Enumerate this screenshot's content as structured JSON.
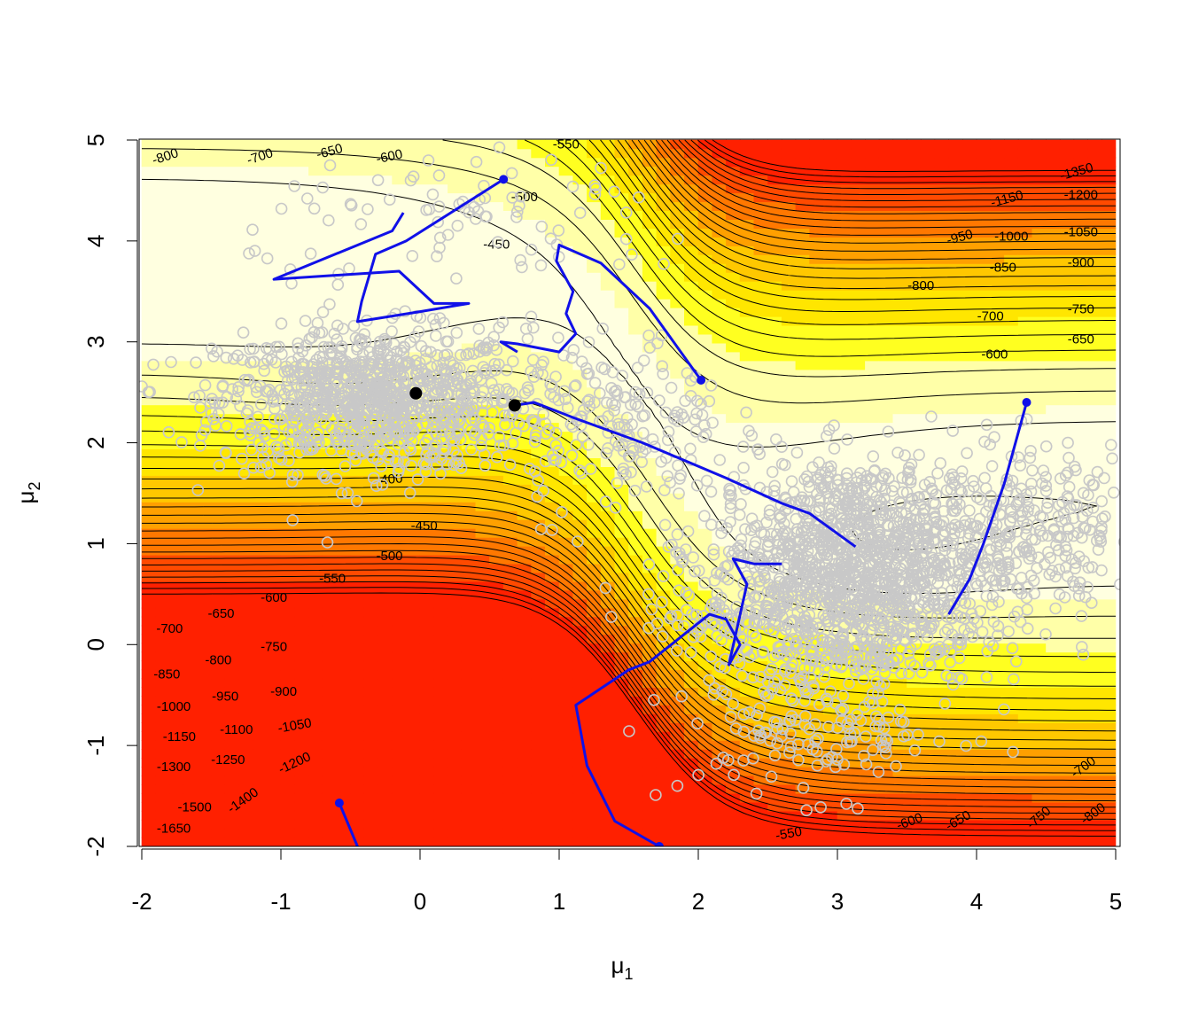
{
  "chart_data": {
    "type": "contour",
    "title": "",
    "xlabel": {
      "base": "μ",
      "sub": "1"
    },
    "ylabel": {
      "base": "μ",
      "sub": "2"
    },
    "xlim": [
      -2,
      5
    ],
    "ylim": [
      -2,
      5
    ],
    "x_ticks": [
      "-2",
      "-1",
      "0",
      "1",
      "2",
      "3",
      "4",
      "5"
    ],
    "y_ticks": [
      "-2",
      "-1",
      "0",
      "1",
      "2",
      "3",
      "4",
      "5"
    ],
    "colors": {
      "palette": [
        "#ffffe0",
        "#ffffa8",
        "#ffff20",
        "#ffe600",
        "#ffc800",
        "#ffa000",
        "#ff7800",
        "#ff4a00",
        "#ff2000"
      ],
      "contour_line": "#000000",
      "samples": "#c8c8c8",
      "paths": "#1010e8",
      "modes": "#000000"
    },
    "contour_levels": [
      -1650,
      -1600,
      -1550,
      -1500,
      -1450,
      -1400,
      -1350,
      -1300,
      -1250,
      -1200,
      -1150,
      -1100,
      -1050,
      -1000,
      -950,
      -900,
      -850,
      -800,
      -750,
      -700,
      -650,
      -600,
      -550,
      -500,
      -450,
      -400
    ],
    "contour_labels": [
      {
        "text": "-800",
        "x": -1.83,
        "y": 4.83,
        "rot": -18
      },
      {
        "text": "-700",
        "x": -1.15,
        "y": 4.83,
        "rot": -18
      },
      {
        "text": "-650",
        "x": -0.65,
        "y": 4.88,
        "rot": -15
      },
      {
        "text": "-600",
        "x": -0.22,
        "y": 4.83,
        "rot": -12
      },
      {
        "text": "-550",
        "x": 1.05,
        "y": 4.95,
        "rot": 0
      },
      {
        "text": "-500",
        "x": 0.75,
        "y": 4.43,
        "rot": 0
      },
      {
        "text": "-450",
        "x": 0.55,
        "y": 3.96,
        "rot": 0
      },
      {
        "text": "-400",
        "x": -0.22,
        "y": 1.63,
        "rot": -5
      },
      {
        "text": "-450",
        "x": 0.03,
        "y": 1.17,
        "rot": 0
      },
      {
        "text": "-500",
        "x": -0.22,
        "y": 0.87,
        "rot": 0
      },
      {
        "text": "-550",
        "x": -0.63,
        "y": 0.65,
        "rot": 0
      },
      {
        "text": "-600",
        "x": -1.05,
        "y": 0.46,
        "rot": 0
      },
      {
        "text": "-650",
        "x": -1.43,
        "y": 0.3,
        "rot": 0
      },
      {
        "text": "-700",
        "x": -1.8,
        "y": 0.15,
        "rot": 0
      },
      {
        "text": "-750",
        "x": -1.05,
        "y": -0.03,
        "rot": 0
      },
      {
        "text": "-800",
        "x": -1.45,
        "y": -0.16,
        "rot": 0
      },
      {
        "text": "-850",
        "x": -1.82,
        "y": -0.3,
        "rot": 0
      },
      {
        "text": "-900",
        "x": -0.98,
        "y": -0.47,
        "rot": 0
      },
      {
        "text": "-950",
        "x": -1.4,
        "y": -0.52,
        "rot": 0
      },
      {
        "text": "-1000",
        "x": -1.77,
        "y": -0.62,
        "rot": 0
      },
      {
        "text": "-1050",
        "x": -0.9,
        "y": -0.81,
        "rot": -10
      },
      {
        "text": "-1100",
        "x": -1.32,
        "y": -0.85,
        "rot": 0
      },
      {
        "text": "-1150",
        "x": -1.73,
        "y": -0.92,
        "rot": 0
      },
      {
        "text": "-1200",
        "x": -0.9,
        "y": -1.18,
        "rot": -25
      },
      {
        "text": "-1250",
        "x": -1.38,
        "y": -1.15,
        "rot": 0
      },
      {
        "text": "-1300",
        "x": -1.77,
        "y": -1.22,
        "rot": 0
      },
      {
        "text": "-1400",
        "x": -1.27,
        "y": -1.55,
        "rot": -35
      },
      {
        "text": "-1500",
        "x": -1.62,
        "y": -1.62,
        "rot": 0
      },
      {
        "text": "-1650",
        "x": -1.77,
        "y": -1.83,
        "rot": 0
      },
      {
        "text": "-1350",
        "x": 4.72,
        "y": 4.68,
        "rot": -15
      },
      {
        "text": "-1150",
        "x": 4.22,
        "y": 4.41,
        "rot": -15
      },
      {
        "text": "-1200",
        "x": 4.75,
        "y": 4.45,
        "rot": 0
      },
      {
        "text": "-950",
        "x": 3.88,
        "y": 4.03,
        "rot": -15
      },
      {
        "text": "-1000",
        "x": 4.25,
        "y": 4.04,
        "rot": 0
      },
      {
        "text": "-1050",
        "x": 4.75,
        "y": 4.08,
        "rot": 0
      },
      {
        "text": "-800",
        "x": 3.6,
        "y": 3.55,
        "rot": 0
      },
      {
        "text": "-850",
        "x": 4.19,
        "y": 3.73,
        "rot": 0
      },
      {
        "text": "-900",
        "x": 4.75,
        "y": 3.78,
        "rot": 0
      },
      {
        "text": "-750",
        "x": 4.75,
        "y": 3.32,
        "rot": 0
      },
      {
        "text": "-700",
        "x": 4.1,
        "y": 3.25,
        "rot": 0
      },
      {
        "text": "-650",
        "x": 4.75,
        "y": 3.02,
        "rot": 0
      },
      {
        "text": "-600",
        "x": 4.13,
        "y": 2.87,
        "rot": 0
      },
      {
        "text": "-550",
        "x": 2.65,
        "y": -1.88,
        "rot": -10
      },
      {
        "text": "-600",
        "x": 3.52,
        "y": -1.76,
        "rot": -20
      },
      {
        "text": "-650",
        "x": 3.87,
        "y": -1.75,
        "rot": -30
      },
      {
        "text": "-700",
        "x": 4.77,
        "y": -1.22,
        "rot": -35
      },
      {
        "text": "-750",
        "x": 4.45,
        "y": -1.72,
        "rot": -40
      },
      {
        "text": "-800",
        "x": 4.84,
        "y": -1.68,
        "rot": -35
      }
    ],
    "modes": [
      {
        "x": -0.03,
        "y": 2.49
      },
      {
        "x": 0.68,
        "y": 2.37
      }
    ],
    "paths": [
      {
        "name": "path1",
        "points": [
          [
            0.6,
            4.61
          ],
          [
            -0.1,
            4.0
          ],
          [
            -0.32,
            3.87
          ],
          [
            -0.42,
            3.4
          ],
          [
            -0.45,
            3.2
          ],
          [
            0.0,
            3.3
          ],
          [
            0.35,
            3.38
          ],
          [
            0.1,
            3.38
          ],
          [
            -0.15,
            3.7
          ],
          [
            -1.05,
            3.62
          ],
          [
            -0.2,
            4.1
          ],
          [
            -0.12,
            4.28
          ]
        ]
      },
      {
        "name": "path2",
        "points": [
          [
            2.02,
            2.62
          ],
          [
            1.65,
            3.33
          ],
          [
            1.3,
            3.78
          ],
          [
            1.0,
            3.96
          ],
          [
            0.98,
            3.8
          ],
          [
            1.1,
            3.5
          ],
          [
            1.05,
            3.28
          ],
          [
            1.12,
            3.08
          ],
          [
            1.0,
            2.9
          ],
          [
            0.7,
            2.98
          ],
          [
            0.58,
            3.0
          ],
          [
            0.7,
            2.9
          ]
        ]
      },
      {
        "name": "path3",
        "points": [
          [
            0.68,
            2.37
          ],
          [
            0.82,
            2.4
          ],
          [
            1.1,
            2.25
          ],
          [
            1.6,
            2.0
          ],
          [
            2.2,
            1.65
          ],
          [
            2.6,
            1.4
          ],
          [
            2.8,
            1.3
          ],
          [
            3.13,
            0.97
          ]
        ]
      },
      {
        "name": "path4",
        "points": [
          [
            4.36,
            2.4
          ],
          [
            4.2,
            1.6
          ],
          [
            4.05,
            1.0
          ],
          [
            3.95,
            0.65
          ],
          [
            3.8,
            0.3
          ]
        ]
      },
      {
        "name": "path5",
        "points": [
          [
            1.72,
            -2.0
          ],
          [
            1.4,
            -1.75
          ],
          [
            1.2,
            -1.2
          ],
          [
            1.12,
            -0.6
          ],
          [
            1.5,
            -0.25
          ],
          [
            1.65,
            -0.17
          ],
          [
            2.08,
            0.3
          ],
          [
            2.2,
            0.25
          ],
          [
            2.3,
            0.0
          ],
          [
            2.22,
            -0.2
          ],
          [
            2.35,
            0.6
          ],
          [
            2.25,
            0.85
          ],
          [
            2.4,
            0.8
          ],
          [
            2.6,
            0.8
          ]
        ]
      },
      {
        "name": "path6",
        "points": [
          [
            -0.58,
            -1.57
          ],
          [
            -0.45,
            -2.0
          ]
        ]
      }
    ],
    "sample_clusters": [
      {
        "cx": -0.35,
        "cy": 2.42,
        "sx": 0.55,
        "sy": 0.35,
        "n": 1000
      },
      {
        "cx": 3.2,
        "cy": 0.95,
        "sx": 0.55,
        "sy": 0.45,
        "n": 1100
      },
      {
        "cx": 2.95,
        "cy": 0.25,
        "sx": 0.55,
        "sy": 0.35,
        "n": 500
      },
      {
        "cx": 1.4,
        "cy": 2.2,
        "sx": 0.4,
        "sy": 0.45,
        "n": 180
      },
      {
        "cx": 0.5,
        "cy": 4.2,
        "sx": 0.85,
        "sy": 0.35,
        "n": 90
      },
      {
        "cx": 4.5,
        "cy": 1.2,
        "sx": 0.35,
        "sy": 0.4,
        "n": 180
      },
      {
        "cx": 2.9,
        "cy": -0.8,
        "sx": 0.5,
        "sy": 0.35,
        "n": 160
      }
    ]
  }
}
